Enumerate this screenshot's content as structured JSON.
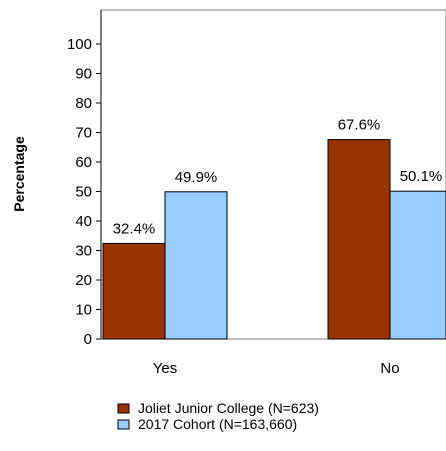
{
  "chart_data": {
    "type": "bar",
    "title": "",
    "xlabel": "",
    "ylabel": "Percentage",
    "ylim": [
      0,
      100
    ],
    "yticks": [
      0,
      10,
      20,
      30,
      40,
      50,
      60,
      70,
      80,
      90,
      100
    ],
    "categories": [
      "Yes",
      "No"
    ],
    "series": [
      {
        "name": "Joliet Junior College (N=623)",
        "color": "#993300",
        "values": [
          32.4,
          67.6
        ],
        "labels": [
          "32.4%",
          "67.6%"
        ]
      },
      {
        "name": "2017 Cohort (N=163,660)",
        "color": "#99ccff",
        "values": [
          49.9,
          50.1
        ],
        "labels": [
          "49.9%",
          "50.1%"
        ]
      }
    ],
    "legend_position": "bottom",
    "grid": false
  }
}
